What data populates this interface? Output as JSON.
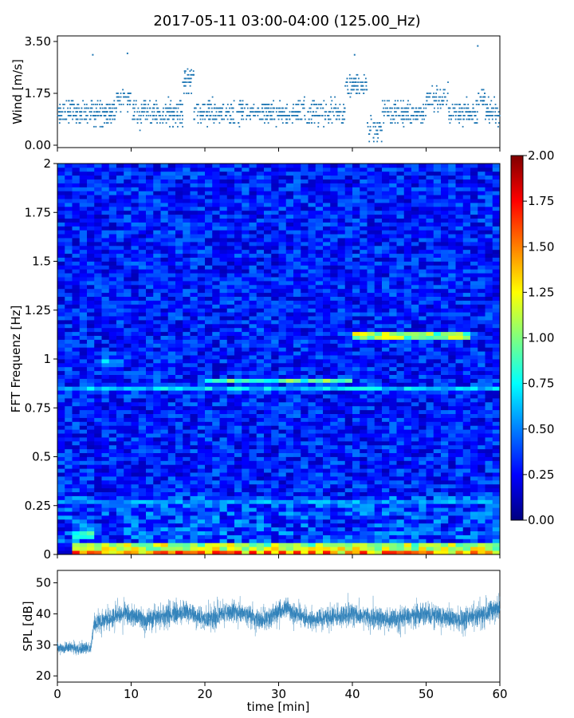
{
  "title": "2017-05-11 03:00-04:00 (125.00_Hz)",
  "colors": {
    "series": "#1f77b4",
    "jet": [
      "#00007f",
      "#0000ff",
      "#007fff",
      "#00ffff",
      "#7fff7f",
      "#ffff00",
      "#ff7f00",
      "#ff0000",
      "#7f0000"
    ]
  },
  "chart_data": [
    {
      "type": "scatter",
      "ylabel": "Wind [m/s]",
      "xlim": [
        0,
        60
      ],
      "ylim": [
        0,
        3.5
      ],
      "yticks": [
        "0.00",
        "1.75",
        "3.50"
      ],
      "x_range": [
        0,
        60
      ],
      "baseline": 1.1,
      "band_spread": 0.6,
      "gust_segments": [
        {
          "x": [
            8,
            10
          ],
          "y": 1.5
        },
        {
          "x": [
            17,
            18.5
          ],
          "y": 2.2
        },
        {
          "x": [
            39,
            42
          ],
          "y": 2.0
        },
        {
          "x": [
            50,
            53
          ],
          "y": 1.6
        },
        {
          "x": [
            57,
            58
          ],
          "y": 1.6
        }
      ],
      "lull_segments": [
        {
          "x": [
            42,
            44
          ],
          "y": 0.5
        }
      ],
      "peaks": [
        {
          "x": 4.8,
          "y": 3.05
        },
        {
          "x": 9.5,
          "y": 3.1
        },
        {
          "x": 40.3,
          "y": 3.05
        },
        {
          "x": 57.0,
          "y": 3.35
        }
      ]
    },
    {
      "type": "heatmap",
      "ylabel": "FFT Frequenz [Hz]",
      "xlim": [
        0,
        60
      ],
      "ylim": [
        0,
        2
      ],
      "yticks": [
        "0",
        "0.25",
        "0.5",
        "0.75",
        "1",
        "1.25",
        "1.5",
        "1.75",
        "2"
      ],
      "colorbar": {
        "range": [
          0,
          2
        ],
        "ticks": [
          "0.00",
          "0.25",
          "0.50",
          "0.75",
          "1.00",
          "1.25",
          "1.50",
          "1.75",
          "2.00"
        ]
      },
      "background_level": 0.3,
      "bright_lines": [
        {
          "freq": 0.02,
          "x": [
            2,
            60
          ],
          "value": 1.4
        },
        {
          "freq": 0.04,
          "x": [
            2,
            60
          ],
          "value": 1.1
        },
        {
          "freq": 0.1,
          "x": [
            2,
            5
          ],
          "value": 0.8
        },
        {
          "freq": 0.85,
          "x": [
            0,
            60
          ],
          "value": 0.65
        },
        {
          "freq": 0.89,
          "x": [
            20,
            40
          ],
          "value": 0.9
        },
        {
          "freq": 1.12,
          "x": [
            40,
            56
          ],
          "value": 1.05
        },
        {
          "freq": 0.98,
          "x": [
            6,
            9
          ],
          "value": 0.6
        },
        {
          "freq": 0.27,
          "x": [
            0,
            60
          ],
          "value": 0.55
        }
      ]
    },
    {
      "type": "line",
      "ylabel": "SPL [dB]",
      "xlabel": "time [min]",
      "xlim": [
        0,
        60
      ],
      "ylim": [
        18,
        54
      ],
      "yticks": [
        "20",
        "30",
        "40",
        "50"
      ],
      "xticks": [
        "0",
        "10",
        "20",
        "30",
        "40",
        "50",
        "60"
      ],
      "envelope": [
        {
          "x": 0,
          "y": 29
        },
        {
          "x": 4.5,
          "y": 29
        },
        {
          "x": 5,
          "y": 37
        },
        {
          "x": 9,
          "y": 40
        },
        {
          "x": 12,
          "y": 38
        },
        {
          "x": 17.5,
          "y": 41
        },
        {
          "x": 20,
          "y": 38
        },
        {
          "x": 24,
          "y": 41
        },
        {
          "x": 28,
          "y": 38
        },
        {
          "x": 31,
          "y": 42
        },
        {
          "x": 34,
          "y": 38
        },
        {
          "x": 40,
          "y": 40
        },
        {
          "x": 45,
          "y": 38
        },
        {
          "x": 50,
          "y": 40
        },
        {
          "x": 55,
          "y": 38
        },
        {
          "x": 60,
          "y": 42
        }
      ],
      "noise_amplitude": 4.5
    }
  ]
}
